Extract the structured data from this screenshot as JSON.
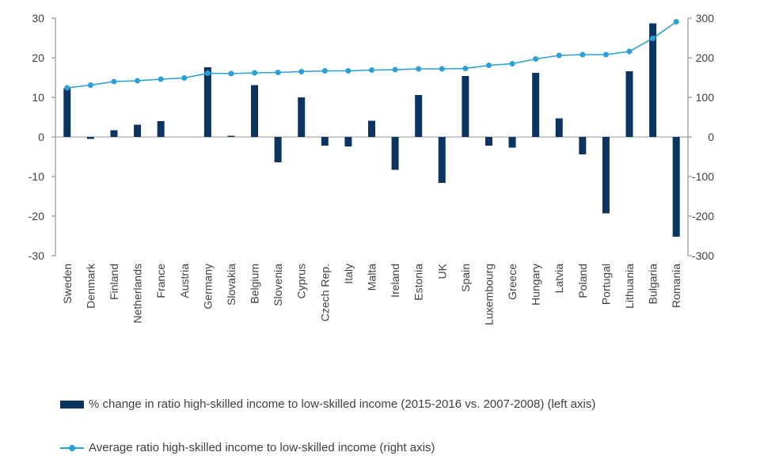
{
  "chart_data": {
    "type": "bar+line",
    "categories": [
      "Sweden",
      "Denmark",
      "Finland",
      "Netherlands",
      "France",
      "Austria",
      "Germany",
      "Slovakia",
      "Belgium",
      "Slovenia",
      "Cyprus",
      "Czech Rep.",
      "Italy",
      "Malta",
      "Ireland",
      "Estonia",
      "UK",
      "Spain",
      "Luxembourg",
      "Greece",
      "Hungary",
      "Latvia",
      "Poland",
      "Portugal",
      "Lithuania",
      "Bulgaria",
      "Romania"
    ],
    "series": [
      {
        "name": "% change in ratio high-skilled income to low-skilled income (2015-2016 vs. 2007-2008) (left axis)",
        "type": "bar",
        "axis": "left",
        "color": "#0c3461",
        "values": [
          12.3,
          -0.5,
          1.7,
          3.1,
          4.0,
          0.0,
          17.6,
          0.3,
          13.1,
          -6.4,
          10.0,
          -2.2,
          -2.4,
          4.1,
          -8.3,
          10.6,
          -11.6,
          15.4,
          -2.2,
          -2.7,
          16.2,
          4.7,
          -4.4,
          -19.3,
          16.6,
          28.7,
          -25.2
        ]
      },
      {
        "name": "Average ratio high-skilled income to low-skilled income (right axis)",
        "type": "line",
        "axis": "right",
        "color": "#2c9fd4",
        "values": [
          124,
          131,
          140,
          142,
          146,
          149,
          161,
          160,
          162,
          163,
          165,
          167,
          167,
          169,
          170,
          172,
          172,
          173,
          181,
          185,
          197,
          206,
          208,
          208,
          216,
          249,
          291
        ]
      }
    ],
    "y_left": {
      "ticks": [
        "30",
        "20",
        "10",
        "0",
        "-10",
        "-20",
        "-30"
      ],
      "lim": [
        -30,
        30
      ]
    },
    "y_right": {
      "ticks": [
        "300",
        "200",
        "100",
        "0",
        "-100",
        "-200",
        "-300"
      ],
      "lim": [
        -300,
        300
      ]
    },
    "grid": false,
    "legend_position": "bottom-left"
  }
}
